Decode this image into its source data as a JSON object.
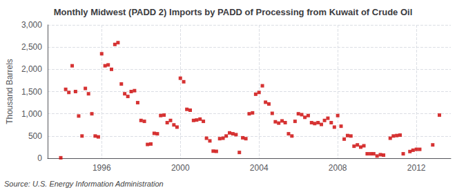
{
  "chart_data": {
    "type": "scatter",
    "title": "Monthly Midwest (PADD 2) Imports by PADD of Processing from Kuwait of Crude Oil",
    "ylabel": "Thousand Barrels",
    "annotation": "Source: U.S. Energy Information Administration",
    "color": "#cc0000",
    "marker": "square",
    "grid": true,
    "xlim": [
      1993.25,
      2013.75
    ],
    "xticks": [
      1996,
      2000,
      2004,
      2008,
      2012
    ],
    "ylim": [
      0,
      3000
    ],
    "yticks": [
      0,
      500,
      {
        "value": 1000,
        "label": "1,000"
      },
      {
        "value": 1500,
        "label": "1,500"
      },
      {
        "value": 2000,
        "label": "2,000"
      },
      {
        "value": 2500,
        "label": "2,500"
      },
      {
        "value": 3000,
        "label": "3,000"
      }
    ],
    "x": [
      1993.92,
      1994.17,
      1994.33,
      1994.5,
      1994.67,
      1994.83,
      1995.0,
      1995.17,
      1995.33,
      1995.5,
      1995.67,
      1995.83,
      1996.0,
      1996.17,
      1996.33,
      1996.5,
      1996.67,
      1996.83,
      1997.0,
      1997.17,
      1997.33,
      1997.5,
      1997.67,
      1997.83,
      1998.0,
      1998.17,
      1998.33,
      1998.5,
      1998.67,
      1998.83,
      1999.0,
      1999.17,
      1999.33,
      1999.5,
      1999.67,
      1999.83,
      2000.0,
      2000.17,
      2000.33,
      2000.5,
      2000.67,
      2000.83,
      2001.0,
      2001.17,
      2001.33,
      2001.5,
      2001.67,
      2001.83,
      2002.0,
      2002.17,
      2002.33,
      2002.5,
      2002.67,
      2002.83,
      2003.0,
      2003.17,
      2003.33,
      2003.5,
      2003.67,
      2003.83,
      2004.0,
      2004.17,
      2004.33,
      2004.5,
      2004.67,
      2004.83,
      2005.0,
      2005.17,
      2005.33,
      2005.5,
      2005.67,
      2005.83,
      2006.0,
      2006.17,
      2006.33,
      2006.5,
      2006.67,
      2006.83,
      2007.0,
      2007.17,
      2007.33,
      2007.5,
      2007.67,
      2007.83,
      2008.0,
      2008.17,
      2008.33,
      2008.5,
      2008.67,
      2008.83,
      2009.0,
      2009.17,
      2009.33,
      2009.5,
      2009.67,
      2009.83,
      2010.0,
      2010.17,
      2010.33,
      2010.67,
      2010.83,
      2011.0,
      2011.17,
      2011.33,
      2011.67,
      2011.83,
      2012.0,
      2012.17,
      2012.83,
      2013.17
    ],
    "values": [
      10,
      1550,
      1480,
      2080,
      1500,
      950,
      500,
      1570,
      1450,
      1000,
      500,
      480,
      2350,
      2080,
      2100,
      2000,
      2560,
      2600,
      1670,
      1450,
      1390,
      1500,
      1520,
      1250,
      850,
      830,
      310,
      320,
      560,
      550,
      960,
      970,
      800,
      850,
      750,
      700,
      1800,
      1720,
      1100,
      1080,
      850,
      860,
      880,
      830,
      450,
      390,
      160,
      155,
      440,
      450,
      500,
      570,
      550,
      530,
      130,
      460,
      440,
      1000,
      1020,
      1440,
      1480,
      1630,
      1260,
      1220,
      1010,
      820,
      790,
      840,
      800,
      550,
      500,
      830,
      1000,
      980,
      920,
      960,
      800,
      780,
      800,
      760,
      850,
      900,
      800,
      700,
      960,
      720,
      430,
      510,
      500,
      270,
      300,
      250,
      280,
      100,
      100,
      100,
      50,
      80,
      70,
      450,
      500,
      510,
      520,
      100,
      150,
      180,
      200,
      200,
      300,
      970
    ]
  }
}
